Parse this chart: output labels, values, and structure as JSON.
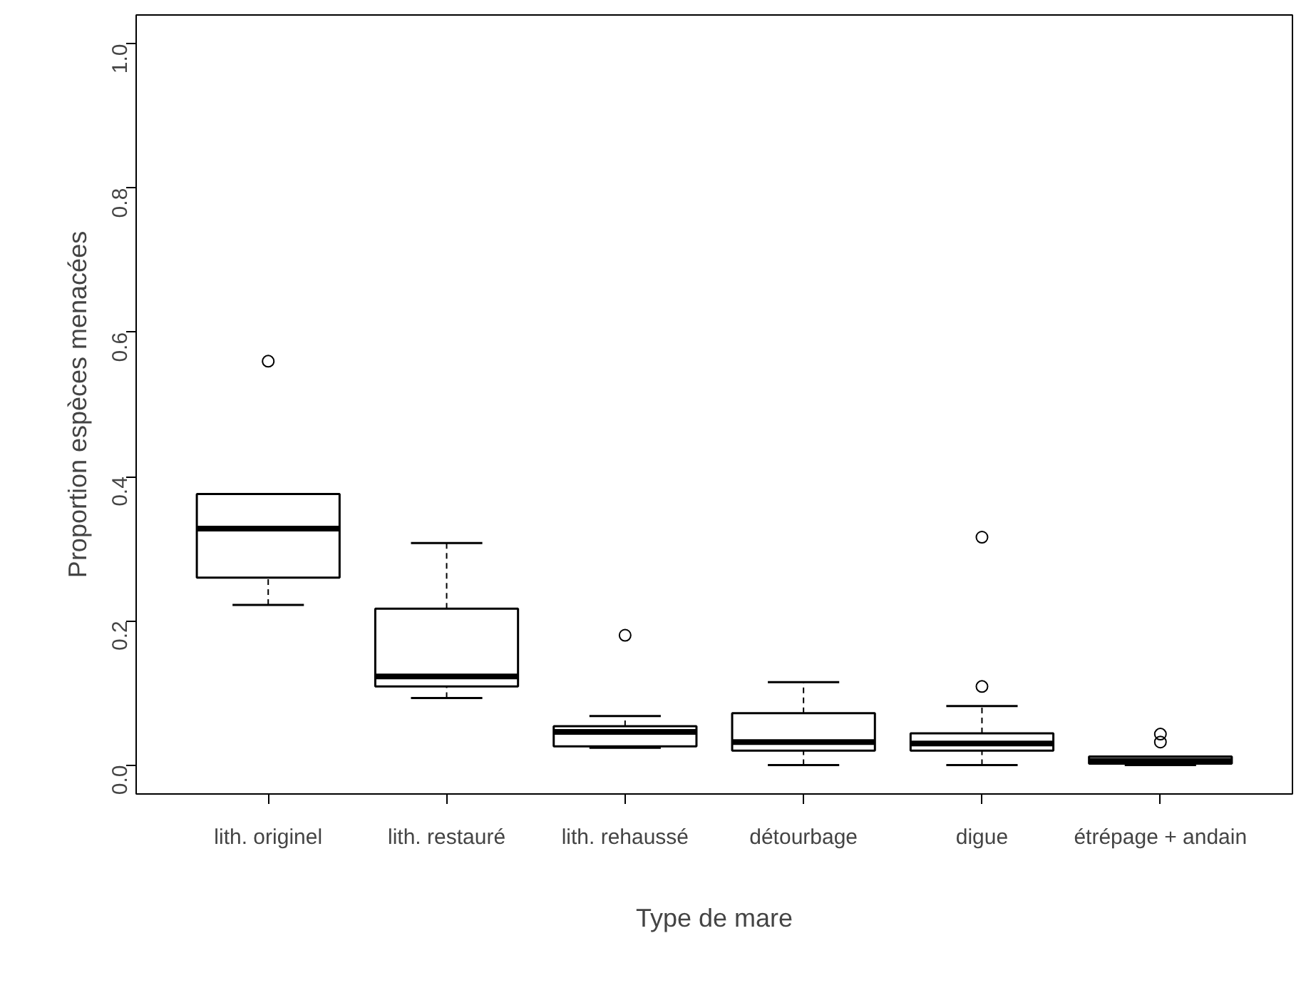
{
  "chart_data": {
    "type": "box",
    "xlabel": "Type de mare",
    "ylabel": "Proportion espèces menacées",
    "categories": [
      "lith. originel",
      "lith. restauré",
      "lith. rehaussé",
      "détourbage",
      "digue",
      "étrépage + andain"
    ],
    "boxes": [
      {
        "low": 0.222,
        "q1": 0.26,
        "median": 0.328,
        "q3": 0.376,
        "high": 0.376,
        "outliers": [
          0.56
        ]
      },
      {
        "low": 0.093,
        "q1": 0.109,
        "median": 0.123,
        "q3": 0.217,
        "high": 0.308
      },
      {
        "low": 0.024,
        "q1": 0.026,
        "median": 0.046,
        "q3": 0.054,
        "high": 0.068,
        "outliers": [
          0.18
        ]
      },
      {
        "low": 0.0,
        "q1": 0.02,
        "median": 0.032,
        "q3": 0.072,
        "high": 0.115
      },
      {
        "low": 0.0,
        "q1": 0.02,
        "median": 0.03,
        "q3": 0.044,
        "high": 0.082,
        "outliers": [
          0.316,
          0.109
        ]
      },
      {
        "low": 0.0,
        "q1": 0.002,
        "median": 0.006,
        "q3": 0.012,
        "high": 0.012,
        "outliers": [
          0.043,
          0.032
        ]
      }
    ],
    "ylim": [
      -0.04,
      1.04
    ],
    "yticks": [
      {
        "value": 0,
        "label": "0.0"
      },
      {
        "value": 0.2,
        "label": "0.2"
      },
      {
        "value": 0.4,
        "label": "0.4"
      },
      {
        "value": 0.6,
        "label": "0.6"
      },
      {
        "value": 0.8,
        "label": "0.8"
      },
      {
        "value": 1,
        "label": "1.0"
      }
    ],
    "grid": false,
    "color": "#ffffff"
  }
}
